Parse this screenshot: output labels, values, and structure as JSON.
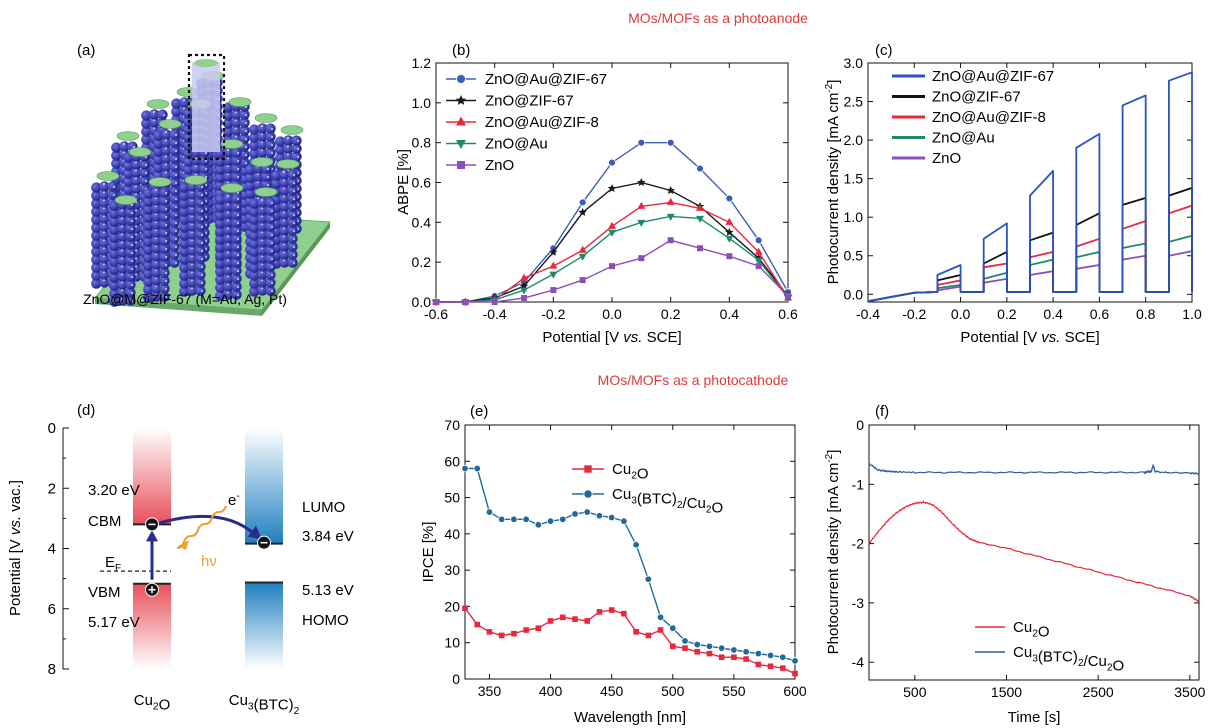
{
  "headings": {
    "top": "MOs/MOFs as a photoanode",
    "middle": "MOs/MOFs as a photocathode",
    "color": "#e03a3a"
  },
  "panel_a": {
    "label": "(a)",
    "caption": "ZnO@M@ZIF-67 (M=Au, Ag, Pt)",
    "colors": {
      "base": "#8fd08f",
      "rod": "#2c2fa3",
      "highlight": "#c9c9f0"
    }
  },
  "panel_d": {
    "label": "(d)",
    "ylabel": "Potential [V vs. vac.]",
    "yticks": [
      "0",
      "2",
      "4",
      "6",
      "8"
    ],
    "ylim": [
      0,
      8
    ],
    "materials": [
      "Cu2O",
      "Cu3(BTC)2"
    ],
    "cu2o": {
      "cbm_label": "3.20 eV",
      "cbm_value": 3.2,
      "cbm_name": "CBM",
      "vbm_label": "5.17 eV",
      "vbm_value": 5.17,
      "vbm_name": "VBM",
      "fermi": "EF",
      "fermi_value": 4.75
    },
    "cu3btc2": {
      "lumo_label": "3.84 eV",
      "lumo_value": 3.84,
      "lumo_name": "LUMO",
      "homo_label": "5.13 eV",
      "homo_value": 5.13,
      "homo_name": "HOMO"
    },
    "electron": "e-",
    "photon": "hν",
    "colors": {
      "cu2o": "#e8505b",
      "mof": "#1f7fc0",
      "arrow": "#2b2b8c",
      "wave": "#f0a030"
    }
  },
  "chart_data": [
    {
      "id": "b",
      "label": "(b)",
      "type": "line",
      "xlabel": "Potential [V vs. SCE]",
      "ylabel": "ABPE [%]",
      "xlim": [
        -0.6,
        0.6
      ],
      "ylim": [
        0,
        1.2
      ],
      "xticks": [
        -0.6,
        -0.4,
        -0.2,
        0.0,
        0.2,
        0.4,
        0.6
      ],
      "yticks": [
        0.0,
        0.2,
        0.4,
        0.6,
        0.8,
        1.0,
        1.2
      ],
      "legend": "top-left",
      "series": [
        {
          "name": "ZnO@Au@ZIF-67",
          "color": "#3a5fb8",
          "marker": "circle",
          "x": [
            -0.6,
            -0.5,
            -0.4,
            -0.3,
            -0.2,
            -0.1,
            0.0,
            0.1,
            0.2,
            0.3,
            0.4,
            0.5,
            0.6
          ],
          "y": [
            0,
            0,
            0.03,
            0.1,
            0.27,
            0.5,
            0.7,
            0.8,
            0.8,
            0.67,
            0.52,
            0.31,
            0.05
          ]
        },
        {
          "name": "ZnO@ZIF-67",
          "color": "#1a1a1a",
          "marker": "star",
          "x": [
            -0.6,
            -0.5,
            -0.4,
            -0.3,
            -0.2,
            -0.1,
            0.0,
            0.1,
            0.2,
            0.3,
            0.4,
            0.5,
            0.6
          ],
          "y": [
            0,
            0,
            0.02,
            0.08,
            0.25,
            0.45,
            0.57,
            0.6,
            0.56,
            0.48,
            0.35,
            0.22,
            0.03
          ]
        },
        {
          "name": "ZnO@Au@ZIF-8",
          "color": "#e8283c",
          "marker": "triangle-up",
          "x": [
            -0.6,
            -0.5,
            -0.4,
            -0.3,
            -0.2,
            -0.1,
            0.0,
            0.1,
            0.2,
            0.3,
            0.4,
            0.5,
            0.6
          ],
          "y": [
            0,
            0,
            0.01,
            0.12,
            0.18,
            0.26,
            0.38,
            0.48,
            0.5,
            0.47,
            0.4,
            0.25,
            0.02
          ]
        },
        {
          "name": "ZnO@Au",
          "color": "#1f8a6a",
          "marker": "triangle-down",
          "x": [
            -0.6,
            -0.5,
            -0.4,
            -0.3,
            -0.2,
            -0.1,
            0.0,
            0.1,
            0.2,
            0.3,
            0.4,
            0.5,
            0.6
          ],
          "y": [
            0,
            0,
            0.01,
            0.06,
            0.14,
            0.23,
            0.35,
            0.4,
            0.43,
            0.42,
            0.32,
            0.21,
            0.02
          ]
        },
        {
          "name": "ZnO",
          "color": "#8a4fb8",
          "marker": "square",
          "x": [
            -0.6,
            -0.5,
            -0.4,
            -0.3,
            -0.2,
            -0.1,
            0.0,
            0.1,
            0.2,
            0.3,
            0.4,
            0.5,
            0.6
          ],
          "y": [
            0,
            0,
            0,
            0.02,
            0.06,
            0.11,
            0.18,
            0.22,
            0.31,
            0.27,
            0.23,
            0.18,
            0.03
          ]
        }
      ]
    },
    {
      "id": "c",
      "label": "(c)",
      "type": "line",
      "xlabel": "Potential [V vs. SCE]",
      "ylabel": "Photocurrent density [mA cm-2]",
      "xlim": [
        -0.4,
        1.0
      ],
      "ylim": [
        -0.1,
        3.0
      ],
      "xticks": [
        -0.4,
        -0.2,
        0.0,
        0.2,
        0.4,
        0.6,
        0.8,
        1.0
      ],
      "yticks": [
        0.0,
        0.5,
        1.0,
        1.5,
        2.0,
        2.5,
        3.0
      ],
      "legend": "top-left",
      "chopped_light": {
        "on_start": [
          -0.1,
          0.1,
          0.3,
          0.5,
          0.7,
          0.9
        ],
        "on_end": [
          0.0,
          0.2,
          0.4,
          0.6,
          0.8,
          1.0
        ]
      },
      "series": [
        {
          "name": "ZnO@Au@ZIF-67",
          "color": "#2a55c0",
          "on_start": [
            0.25,
            0.72,
            1.28,
            1.9,
            2.45,
            2.77
          ],
          "on_end": [
            0.38,
            0.92,
            1.6,
            2.08,
            2.58,
            2.88
          ],
          "dark_start": -0.08,
          "dark_end": 0.0
        },
        {
          "name": "ZnO@ZIF-67",
          "color": "#111111",
          "on_start": [
            0.18,
            0.4,
            0.7,
            0.9,
            1.16,
            1.28
          ],
          "on_end": [
            0.25,
            0.55,
            0.8,
            1.05,
            1.25,
            1.38
          ]
        },
        {
          "name": "ZnO@Au@ZIF-8",
          "color": "#e8283c",
          "on_start": [
            0.12,
            0.35,
            0.48,
            0.62,
            0.85,
            1.05
          ],
          "on_end": [
            0.18,
            0.4,
            0.55,
            0.72,
            0.95,
            1.15
          ]
        },
        {
          "name": "ZnO@Au",
          "color": "#1f8a6a",
          "on_start": [
            0.08,
            0.2,
            0.38,
            0.48,
            0.6,
            0.68
          ],
          "on_end": [
            0.12,
            0.28,
            0.45,
            0.55,
            0.66,
            0.76
          ]
        },
        {
          "name": "ZnO",
          "color": "#8a4fb8",
          "on_start": [
            0.05,
            0.15,
            0.25,
            0.33,
            0.45,
            0.5
          ],
          "on_end": [
            0.1,
            0.2,
            0.3,
            0.38,
            0.5,
            0.56
          ]
        }
      ]
    },
    {
      "id": "e",
      "label": "(e)",
      "type": "line",
      "xlabel": "Wavelength [nm]",
      "ylabel": "IPCE [%]",
      "xlim": [
        330,
        600
      ],
      "ylim": [
        0,
        70
      ],
      "xticks": [
        350,
        400,
        450,
        500,
        550,
        600
      ],
      "yticks": [
        0,
        10,
        20,
        30,
        40,
        50,
        60,
        70
      ],
      "legend": "top-right",
      "series": [
        {
          "name": "Cu2O",
          "color": "#e8283c",
          "marker": "square",
          "x": [
            330,
            340,
            350,
            360,
            370,
            380,
            390,
            400,
            410,
            420,
            430,
            440,
            450,
            460,
            470,
            480,
            490,
            500,
            510,
            520,
            530,
            540,
            550,
            560,
            570,
            580,
            590,
            600
          ],
          "y": [
            19.5,
            15,
            13,
            12,
            12.5,
            13.5,
            14,
            16,
            17,
            16.5,
            16,
            18.5,
            19,
            18,
            13,
            12,
            13.5,
            9,
            8.5,
            7.5,
            7,
            6,
            6,
            5.5,
            4,
            3.5,
            3,
            1.5
          ]
        },
        {
          "name": "Cu3(BTC)2/Cu2O",
          "color": "#1f6a9a",
          "marker": "circle",
          "x": [
            330,
            340,
            350,
            360,
            370,
            380,
            390,
            400,
            410,
            420,
            430,
            440,
            450,
            460,
            470,
            480,
            490,
            500,
            510,
            520,
            530,
            540,
            550,
            560,
            570,
            580,
            590,
            600
          ],
          "y": [
            58,
            58,
            46,
            44,
            44,
            44,
            42.5,
            43.5,
            44,
            45.5,
            46,
            45,
            44.5,
            43.5,
            37,
            27.5,
            17,
            14,
            10.5,
            9.5,
            9,
            8.5,
            8,
            7.5,
            7,
            6.5,
            6,
            5
          ]
        }
      ]
    },
    {
      "id": "f",
      "label": "(f)",
      "type": "line",
      "xlabel": "Time [s]",
      "ylabel": "Photocurrent density [mA cm-2]",
      "xlim": [
        0,
        3600
      ],
      "ylim": [
        -4.3,
        0
      ],
      "xticks": [
        500,
        1500,
        2500,
        3500
      ],
      "yticks": [
        0,
        -1,
        -2,
        -3,
        -4
      ],
      "legend": "bottom-right",
      "series": [
        {
          "name": "Cu2O",
          "color": "#e8283c",
          "x": [
            0,
            100,
            200,
            300,
            400,
            500,
            600,
            700,
            800,
            900,
            1000,
            1100,
            1200,
            1500,
            2000,
            2500,
            3000,
            3500,
            3600
          ],
          "y": [
            -2.0,
            -1.8,
            -1.62,
            -1.48,
            -1.38,
            -1.32,
            -1.3,
            -1.35,
            -1.48,
            -1.65,
            -1.8,
            -1.92,
            -1.98,
            -2.08,
            -2.28,
            -2.48,
            -2.68,
            -2.88,
            -2.98
          ]
        },
        {
          "name": "Cu3(BTC)2/Cu2O",
          "color": "#2a5fa0",
          "x": [
            0,
            100,
            200,
            300,
            500,
            1000,
            1500,
            2000,
            2500,
            3000,
            3080,
            3100,
            3120,
            3200,
            3500,
            3600
          ],
          "y": [
            -0.65,
            -0.76,
            -0.78,
            -0.79,
            -0.8,
            -0.8,
            -0.8,
            -0.8,
            -0.8,
            -0.8,
            -0.78,
            -0.68,
            -0.78,
            -0.8,
            -0.81,
            -0.82
          ]
        }
      ]
    }
  ]
}
